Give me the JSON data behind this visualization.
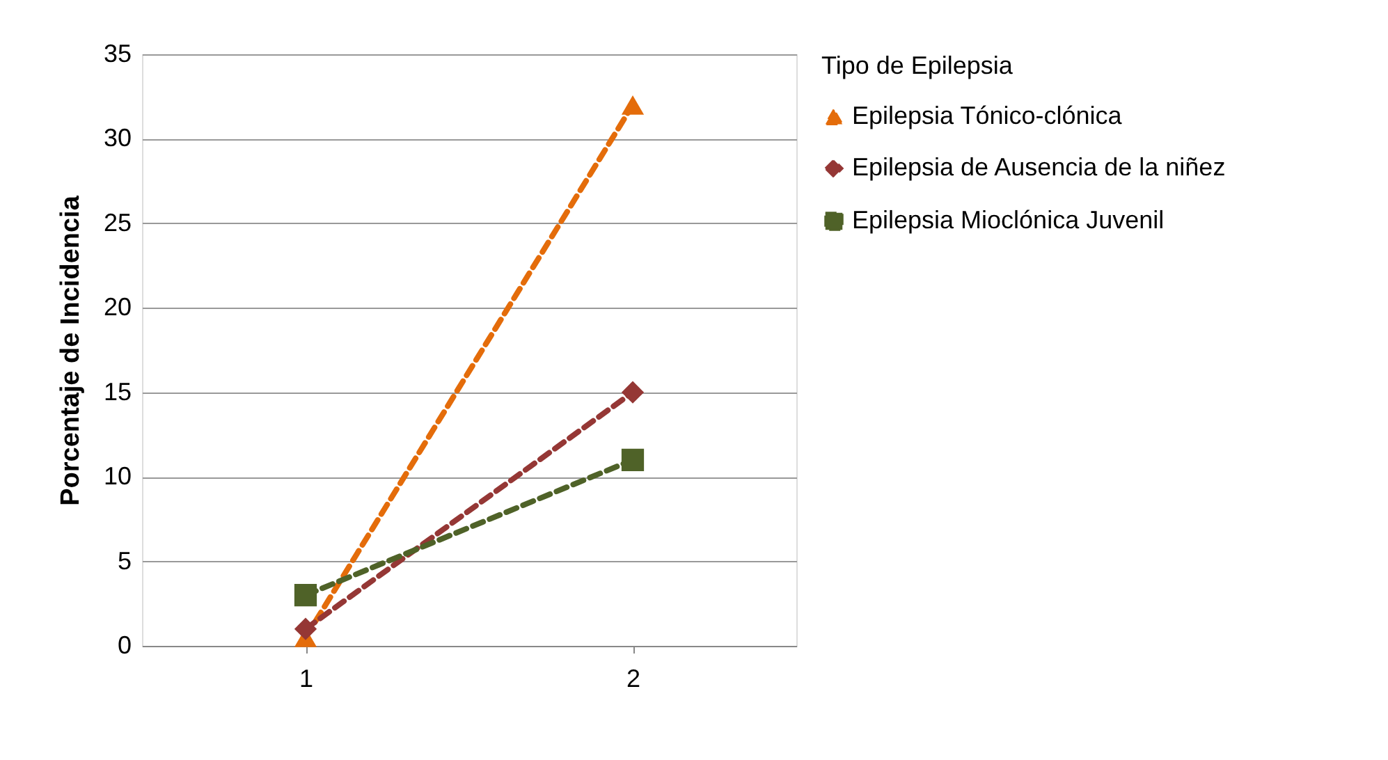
{
  "chart_data": {
    "type": "line",
    "ylabel": "Porcentaje de Incidencia",
    "legend_title": "Tipo de Epilepsia",
    "categories": [
      "1",
      "2"
    ],
    "series": [
      {
        "name": "Epilepsia Tónico-clónica",
        "color": "#e46c0a",
        "marker": "triangle",
        "line_style": "dashed",
        "values": [
          0.5,
          32
        ]
      },
      {
        "name": "Epilepsia de Ausencia de la niñez",
        "color": "#953735",
        "marker": "diamond",
        "line_style": "dashed",
        "values": [
          1,
          15
        ]
      },
      {
        "name": "Epilepsia Mioclónica Juvenil",
        "color": "#4f6228",
        "marker": "square",
        "line_style": "dashed",
        "values": [
          3,
          11
        ]
      }
    ],
    "ylim": [
      0,
      35
    ],
    "yticks": [
      0,
      5,
      10,
      15,
      20,
      25,
      30,
      35
    ],
    "grid": "y",
    "legend": "right"
  }
}
